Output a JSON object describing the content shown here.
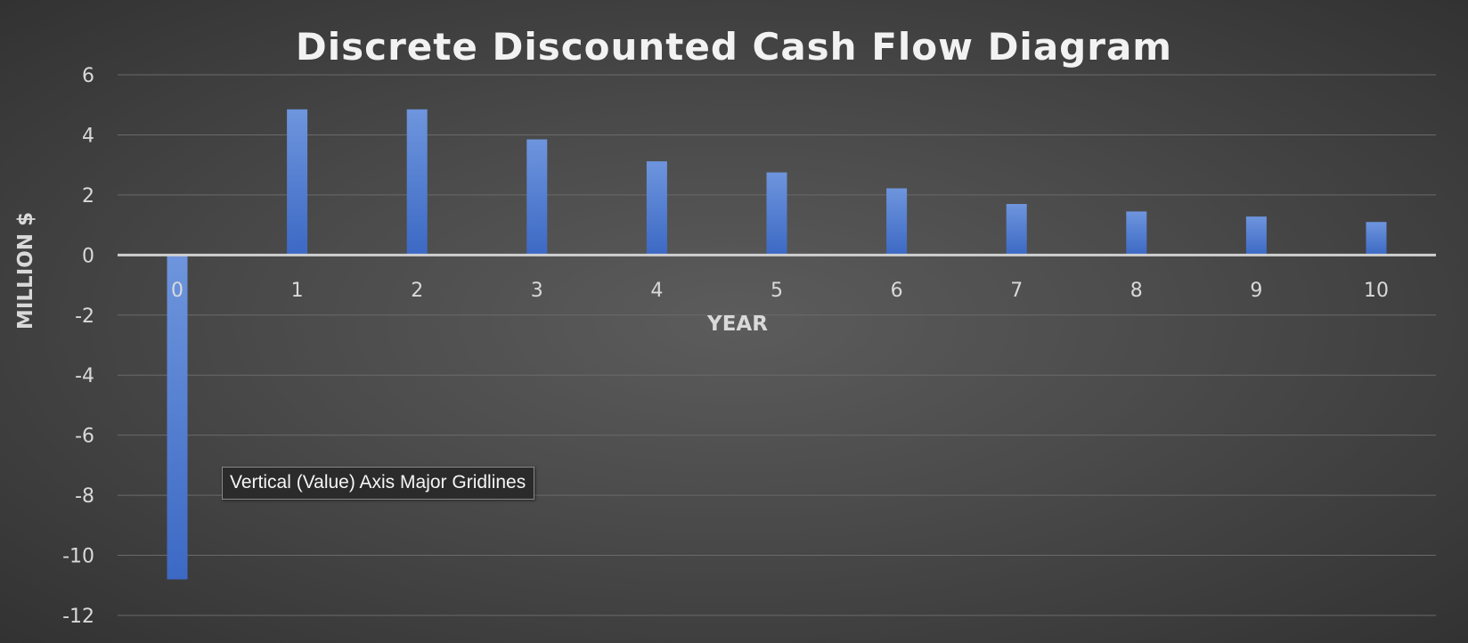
{
  "chart_data": {
    "type": "bar",
    "title": "Discrete Discounted Cash Flow Diagram",
    "xlabel": "YEAR",
    "ylabel": "MILLION $",
    "categories": [
      "0",
      "1",
      "2",
      "3",
      "4",
      "5",
      "6",
      "7",
      "8",
      "9",
      "10"
    ],
    "values": [
      -10.8,
      4.85,
      4.85,
      3.85,
      3.12,
      2.75,
      2.22,
      1.7,
      1.45,
      1.28,
      1.1
    ],
    "ylim": [
      -12,
      6
    ],
    "yticks": [
      6,
      4,
      2,
      0,
      -2,
      -4,
      -6,
      -8,
      -10,
      -12
    ],
    "grid": true,
    "legend": "none",
    "colors": {
      "bar_top": "#6e95dd",
      "bar_bottom": "#3c69c4",
      "gridline": "#6a6a6a",
      "zero_axis": "#d0d0d0"
    }
  },
  "tooltip": {
    "text": "Vertical (Value) Axis Major Gridlines"
  }
}
